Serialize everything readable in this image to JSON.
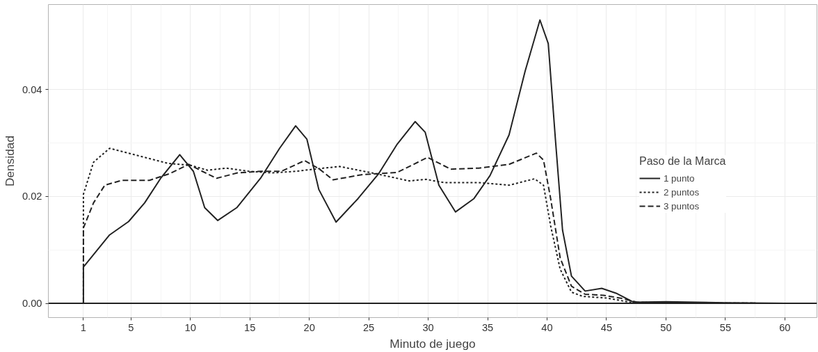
{
  "chart_data": {
    "type": "line",
    "xlabel": "Minuto de juego",
    "ylabel": "Densidad",
    "legend_title": "Paso de la Marca",
    "xlim": [
      -1.95,
      62.7
    ],
    "ylim": [
      -0.00266,
      0.0559
    ],
    "xticks": [
      1,
      5,
      10,
      15,
      20,
      25,
      30,
      35,
      40,
      45,
      50,
      55,
      60
    ],
    "yticks": [
      {
        "value": 0,
        "label": "0.00"
      },
      {
        "value": 0.02,
        "label": "0.02"
      },
      {
        "value": 0.04,
        "label": "0.04"
      }
    ],
    "grid": true,
    "legend": "right",
    "ref_lines": [
      {
        "axis": "y",
        "value": 0,
        "color": "#222222"
      }
    ],
    "series": [
      {
        "name": "1 punto",
        "color": "#222222",
        "line_style": "solid",
        "x": [
          1,
          1,
          3.2,
          4.8,
          6.15,
          7.5,
          9.1,
          10.25,
          11.2,
          12.3,
          13.9,
          15.9,
          17.5,
          18.85,
          19.8,
          20.8,
          22.25,
          24.1,
          25.85,
          27.4,
          28.9,
          29.75,
          30.9,
          32.3,
          33.85,
          35.2,
          36.8,
          38.15,
          39.4,
          40.1,
          40.7,
          41.3,
          42.05,
          43.2,
          44.6,
          45.8,
          47.3,
          50,
          55,
          60
        ],
        "values": [
          0,
          0.0068,
          0.0128,
          0.0153,
          0.0188,
          0.0234,
          0.0278,
          0.0247,
          0.0179,
          0.0155,
          0.0179,
          0.0234,
          0.029,
          0.0332,
          0.0307,
          0.0213,
          0.0152,
          0.0196,
          0.0243,
          0.0298,
          0.034,
          0.032,
          0.0221,
          0.0171,
          0.0196,
          0.0239,
          0.0315,
          0.0434,
          0.053,
          0.0486,
          0.0307,
          0.0137,
          0.0051,
          0.0023,
          0.0028,
          0.0019,
          0.0002,
          0.0003,
          0.0001,
          0
        ]
      },
      {
        "name": "2 puntos",
        "color": "#222222",
        "line_style": "dotted",
        "x": [
          1,
          1,
          1.85,
          3.2,
          5.15,
          8.1,
          10.05,
          11.45,
          13,
          14.95,
          16.9,
          18.85,
          20.8,
          22.55,
          25.5,
          28.4,
          29.8,
          31.3,
          34.25,
          36.8,
          38.95,
          39.7,
          40.3,
          41.1,
          42.05,
          43,
          45,
          47,
          50,
          60
        ],
        "values": [
          0,
          0.0204,
          0.0264,
          0.029,
          0.0279,
          0.0262,
          0.0258,
          0.0249,
          0.0253,
          0.0247,
          0.0244,
          0.0247,
          0.0252,
          0.0256,
          0.0243,
          0.0229,
          0.0232,
          0.0226,
          0.0226,
          0.0221,
          0.0233,
          0.0221,
          0.0145,
          0.0064,
          0.0021,
          0.0013,
          0.001,
          0.0002,
          0.0001,
          0
        ]
      },
      {
        "name": "3 puntos",
        "color": "#222222",
        "line_style": "dashed",
        "x": [
          1,
          1,
          1.85,
          2.8,
          4.2,
          6.55,
          8.3,
          9.85,
          11,
          12.2,
          13.95,
          15.9,
          17.65,
          19.6,
          20.8,
          22,
          24.5,
          27.4,
          29.95,
          31.9,
          34.25,
          36.8,
          39.1,
          39.7,
          40.3,
          41.1,
          42.05,
          43.2,
          44.75,
          46.35,
          47.6,
          50,
          60
        ],
        "values": [
          0,
          0.0141,
          0.0188,
          0.0221,
          0.023,
          0.023,
          0.0243,
          0.026,
          0.0247,
          0.0234,
          0.0244,
          0.0247,
          0.0247,
          0.0267,
          0.0252,
          0.0231,
          0.0241,
          0.0245,
          0.0273,
          0.0251,
          0.0253,
          0.026,
          0.0281,
          0.0268,
          0.0196,
          0.0085,
          0.0032,
          0.0017,
          0.0015,
          0.0009,
          0.0002,
          0.0001,
          0
        ]
      }
    ]
  }
}
